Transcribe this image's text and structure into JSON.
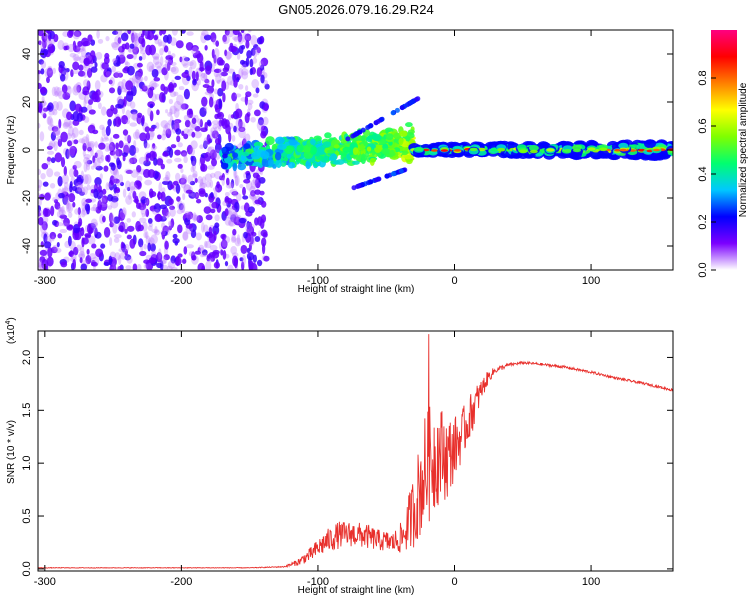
{
  "title": "GN05.2026.079.16.29.R24",
  "chart_data": [
    {
      "type": "heatmap",
      "name": "spectrogram",
      "xlabel": "Height of straight line (km)",
      "ylabel": "Frequency (Hz)",
      "xlim": [
        -305,
        160
      ],
      "ylim": [
        -50,
        50
      ],
      "xticks": [
        -300,
        -200,
        -100,
        0,
        100
      ],
      "yticks": [
        -40,
        -20,
        0,
        20,
        40
      ],
      "xtick_labels": [
        "-300",
        "-200",
        "-100",
        "0",
        "100"
      ],
      "ytick_labels": [
        "-40",
        "-20",
        "0",
        "20",
        "40"
      ],
      "colorbar": {
        "label": "Normalized spectral amplitude",
        "range": [
          0,
          1
        ],
        "ticks": [
          0.0,
          0.2,
          0.4,
          0.6,
          0.8
        ],
        "tick_labels": [
          "0.0",
          "0.2",
          "0.4",
          "0.6",
          "0.8"
        ],
        "colors": [
          "#ffffff",
          "#7b00ff",
          "#0000ff",
          "#00c8ff",
          "#00ff70",
          "#7fff00",
          "#ffff00",
          "#ff8000",
          "#ff0000",
          "#ff0080"
        ]
      },
      "regions": [
        {
          "description": "scattered noise",
          "x_range": [
            -305,
            -137
          ],
          "freq_range": [
            -50,
            50
          ],
          "amplitude": 0.1
        },
        {
          "description": "broadening signal",
          "x_range": [
            -170,
            -30
          ],
          "freq_center": 0,
          "amplitude": 0.3
        },
        {
          "description": "narrow signal band",
          "x_range": [
            -30,
            160
          ],
          "freq_center": 0,
          "amplitude": 0.85
        }
      ]
    },
    {
      "type": "line",
      "name": "snr",
      "xlabel": "Height of straight line (km)",
      "ylabel": "SNR (10 * v/v)",
      "y_multiplier_label": "(x10",
      "y_multiplier_exp": "4",
      "xlim": [
        -305,
        160
      ],
      "ylim": [
        -0.02,
        2.25
      ],
      "xticks": [
        -300,
        -200,
        -100,
        0,
        100
      ],
      "yticks": [
        0.0,
        0.5,
        1.0,
        1.5,
        2.0
      ],
      "xtick_labels": [
        "-300",
        "-200",
        "-100",
        "0",
        "100"
      ],
      "ytick_labels": [
        "0.0",
        "0.5",
        "1.0",
        "1.5",
        "2.0"
      ],
      "series": [
        {
          "name": "SNR",
          "color": "#e8302c",
          "x": [
            -305,
            -250,
            -200,
            -150,
            -125,
            -115,
            -105,
            -95,
            -85,
            -75,
            -65,
            -55,
            -45,
            -38,
            -30,
            -22,
            -16,
            -10,
            -5,
            0,
            5,
            10,
            15,
            20,
            25,
            30,
            40,
            50,
            60,
            80,
            100,
            120,
            140,
            160
          ],
          "y": [
            0.01,
            0.01,
            0.01,
            0.01,
            0.02,
            0.06,
            0.14,
            0.25,
            0.32,
            0.33,
            0.31,
            0.27,
            0.25,
            0.3,
            0.55,
            0.9,
            1.05,
            1.1,
            1.05,
            1.15,
            1.25,
            1.4,
            1.55,
            1.7,
            1.82,
            1.88,
            1.93,
            1.95,
            1.94,
            1.91,
            1.86,
            1.8,
            1.75,
            1.69
          ],
          "noise_amplitude": [
            0.003,
            0.003,
            0.003,
            0.003,
            0.005,
            0.03,
            0.07,
            0.11,
            0.13,
            0.12,
            0.12,
            0.1,
            0.1,
            0.16,
            0.35,
            0.55,
            0.55,
            0.45,
            0.4,
            0.3,
            0.25,
            0.22,
            0.18,
            0.1,
            0.06,
            0.03,
            0.015,
            0.012,
            0.012,
            0.012,
            0.012,
            0.012,
            0.012,
            0.012
          ],
          "peak": {
            "x": -19,
            "y": 2.22
          }
        }
      ]
    }
  ]
}
